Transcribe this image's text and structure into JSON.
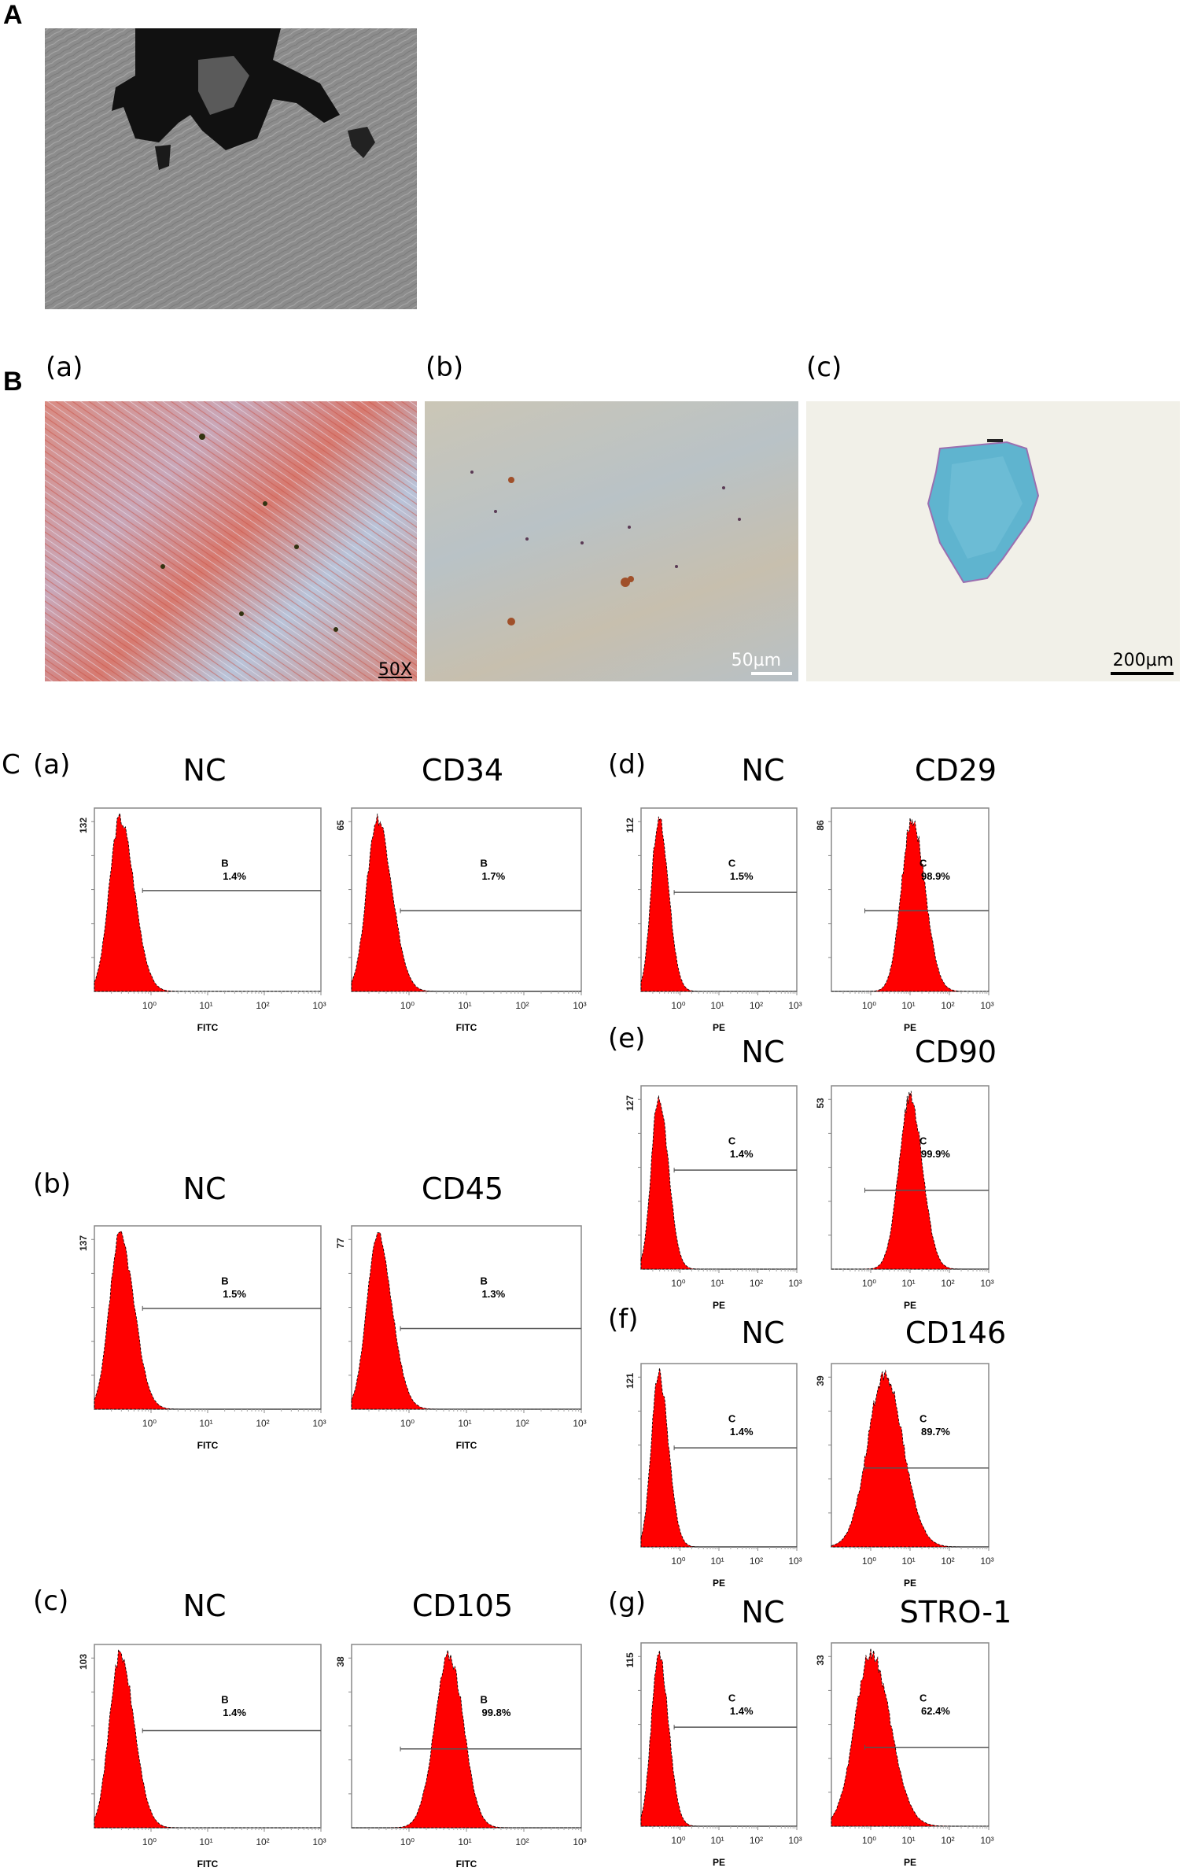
{
  "figure": {
    "panel_a": {
      "letter": "A",
      "description": "phase-contrast micrograph of spindle-shaped cell outgrowth from dark tissue fragment"
    },
    "panel_b": {
      "letter": "B",
      "subpanels": [
        {
          "label": "(a)",
          "scale_text": "50X",
          "stain": "alizarin red",
          "scale_style": "underline-text"
        },
        {
          "label": "(b)",
          "scale_text": "50µm",
          "stain": "oil red O",
          "scale_style": "white-bar"
        },
        {
          "label": "(c)",
          "scale_text": "200µm",
          "stain": "alcian blue pellet",
          "scale_style": "black-bar"
        }
      ]
    },
    "panel_c": {
      "letter": "C"
    }
  },
  "chart_data": [
    {
      "type": "histogram",
      "group": "(a)",
      "title": "NC",
      "xlabel": "FITC",
      "ymax_label": "132",
      "gate": "B",
      "percent": "1.4%",
      "peak_log": -0.55,
      "width": 0.22,
      "gate_y": 0.45,
      "skew": 0.15
    },
    {
      "type": "histogram",
      "group": "(a)",
      "title": "CD34",
      "xlabel": "FITC",
      "ymax_label": "65",
      "gate": "B",
      "percent": "1.7%",
      "peak_log": -0.55,
      "width": 0.22,
      "gate_y": 0.56,
      "skew": 0.15
    },
    {
      "type": "histogram",
      "group": "(b)",
      "title": "NC",
      "xlabel": "FITC",
      "ymax_label": "137",
      "gate": "B",
      "percent": "1.5%",
      "peak_log": -0.55,
      "width": 0.22,
      "gate_y": 0.45,
      "skew": 0.15
    },
    {
      "type": "histogram",
      "group": "(b)",
      "title": "CD45",
      "xlabel": "FITC",
      "ymax_label": "77",
      "gate": "B",
      "percent": "1.3%",
      "peak_log": -0.55,
      "width": 0.22,
      "gate_y": 0.56,
      "skew": 0.15
    },
    {
      "type": "histogram",
      "group": "(c)",
      "title": "NC",
      "xlabel": "FITC",
      "ymax_label": "103",
      "gate": "B",
      "percent": "1.4%",
      "peak_log": -0.55,
      "width": 0.22,
      "gate_y": 0.47,
      "skew": 0.15
    },
    {
      "type": "histogram",
      "group": "(c)",
      "title": "CD105",
      "xlabel": "FITC",
      "ymax_label": "38",
      "gate": "B",
      "percent": "99.8%",
      "peak_log": 0.7,
      "width": 0.25,
      "gate_y": 0.57,
      "skew": 0.0
    },
    {
      "type": "histogram",
      "group": "(d)",
      "title": "NC",
      "xlabel": "PE",
      "ymax_label": "112",
      "gate": "C",
      "percent": "1.5%",
      "peak_log": -0.55,
      "width": 0.22,
      "gate_y": 0.46,
      "skew": 0.15
    },
    {
      "type": "histogram",
      "group": "(d)",
      "title": "CD29",
      "xlabel": "PE",
      "ymax_label": "86",
      "gate": "C",
      "percent": "98.9%",
      "peak_log": 1.05,
      "width": 0.3,
      "gate_y": 0.56,
      "skew": 0.1
    },
    {
      "type": "histogram",
      "group": "(e)",
      "title": "NC",
      "xlabel": "PE",
      "ymax_label": "127",
      "gate": "C",
      "percent": "1.4%",
      "peak_log": -0.55,
      "width": 0.22,
      "gate_y": 0.46,
      "skew": 0.15
    },
    {
      "type": "histogram",
      "group": "(e)",
      "title": "CD90",
      "xlabel": "PE",
      "ymax_label": "53",
      "gate": "C",
      "percent": "99.9%",
      "peak_log": 1.0,
      "width": 0.3,
      "gate_y": 0.57,
      "skew": 0.05
    },
    {
      "type": "histogram",
      "group": "(f)",
      "title": "NC",
      "xlabel": "PE",
      "ymax_label": "121",
      "gate": "C",
      "percent": "1.4%",
      "peak_log": -0.55,
      "width": 0.22,
      "gate_y": 0.46,
      "skew": 0.15
    },
    {
      "type": "histogram",
      "group": "(f)",
      "title": "CD146",
      "xlabel": "PE",
      "ymax_label": "39",
      "gate": "C",
      "percent": "89.7%",
      "peak_log": 0.35,
      "width": 0.45,
      "gate_y": 0.57,
      "skew": 0.05
    },
    {
      "type": "histogram",
      "group": "(g)",
      "title": "NC",
      "xlabel": "PE",
      "ymax_label": "115",
      "gate": "C",
      "percent": "1.4%",
      "peak_log": -0.55,
      "width": 0.22,
      "gate_y": 0.46,
      "skew": 0.15
    },
    {
      "type": "histogram",
      "group": "(g)",
      "title": "STRO-1",
      "xlabel": "PE",
      "ymax_label": "33",
      "gate": "C",
      "percent": "62.4%",
      "peak_log": 0.0,
      "width": 0.45,
      "gate_y": 0.57,
      "skew": 0.1
    }
  ],
  "axis": {
    "x_ticks": [
      "10⁰",
      "10¹",
      "10²",
      "10³"
    ],
    "x_range_log": [
      -1,
      3
    ]
  },
  "colors": {
    "fill": "#ff0000",
    "outline": "#000000",
    "axis": "#555555",
    "gate": "#555555"
  }
}
